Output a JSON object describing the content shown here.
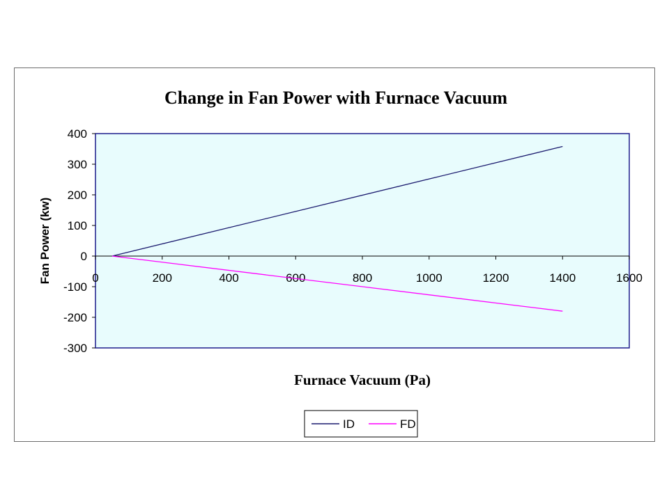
{
  "chart_data": {
    "type": "line",
    "title": "Change in Fan Power with Furnace Vacuum",
    "xlabel": "Furnace Vacuum (Pa)",
    "ylabel": "Fan Power (kw)",
    "xlim": [
      0,
      1600
    ],
    "ylim": [
      -300,
      400
    ],
    "xticks": [
      "0",
      "200",
      "400",
      "600",
      "800",
      "1000",
      "1200",
      "1400",
      "1600"
    ],
    "yticks": [
      "400",
      "300",
      "200",
      "100",
      "0",
      "-100",
      "-200",
      "-300"
    ],
    "grid": false,
    "legend": "bottom",
    "plot_background": "#e8fcfd",
    "series": [
      {
        "name": "ID",
        "color": "#1a1a6e",
        "x": [
          50,
          1400
        ],
        "y": [
          0,
          358
        ]
      },
      {
        "name": "FD",
        "color": "#ff00ff",
        "x": [
          50,
          1400
        ],
        "y": [
          0,
          -180
        ]
      }
    ]
  }
}
